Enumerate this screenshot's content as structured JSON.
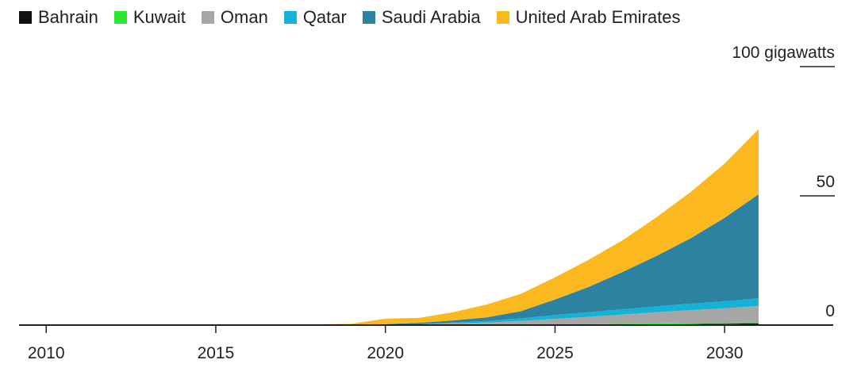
{
  "chart_data": {
    "type": "area",
    "stacked": true,
    "unit": "gigawatts",
    "x": [
      2010,
      2011,
      2012,
      2013,
      2014,
      2015,
      2016,
      2017,
      2018,
      2019,
      2020,
      2021,
      2022,
      2023,
      2024,
      2025,
      2026,
      2027,
      2028,
      2029,
      2030,
      2031
    ],
    "series": [
      {
        "name": "Bahrain",
        "color": "#111111",
        "values": [
          0,
          0,
          0,
          0,
          0,
          0,
          0,
          0,
          0,
          0,
          0,
          0,
          0,
          0,
          0,
          0,
          0.1,
          0.2,
          0.3,
          0.4,
          0.5,
          0.7
        ]
      },
      {
        "name": "Kuwait",
        "color": "#2ee62e",
        "values": [
          0,
          0,
          0,
          0,
          0,
          0,
          0,
          0,
          0,
          0,
          0,
          0,
          0,
          0,
          0.1,
          0.2,
          0.2,
          0.3,
          0.3,
          0.4,
          0.4,
          0.5
        ]
      },
      {
        "name": "Oman",
        "color": "#a6a6a6",
        "values": [
          0,
          0,
          0,
          0,
          0,
          0,
          0,
          0,
          0,
          0,
          0.1,
          0.3,
          0.7,
          1.0,
          1.5,
          2.2,
          2.9,
          3.6,
          4.4,
          5.0,
          5.6,
          6.2
        ]
      },
      {
        "name": "Qatar",
        "color": "#12b3d4",
        "values": [
          0,
          0,
          0,
          0,
          0,
          0,
          0,
          0,
          0,
          0,
          0,
          0,
          0.3,
          0.6,
          1.0,
          1.5,
          1.8,
          2.0,
          2.3,
          2.5,
          2.7,
          3.0
        ]
      },
      {
        "name": "Saudi Arabia",
        "color": "#2e82a1",
        "values": [
          0,
          0,
          0,
          0,
          0,
          0,
          0,
          0,
          0,
          0,
          0.3,
          0.6,
          0.8,
          1.4,
          2.8,
          6.0,
          9.8,
          14.5,
          19.5,
          25.3,
          32.3,
          40.2
        ]
      },
      {
        "name": "United Arab Emirates",
        "color": "#fbb81f",
        "values": [
          0,
          0,
          0,
          0,
          0.2,
          0.2,
          0.3,
          0.3,
          0.3,
          0.5,
          2.1,
          1.9,
          3.2,
          5.0,
          6.7,
          8.6,
          10.5,
          12.3,
          15.0,
          17.9,
          21.0,
          25.2
        ]
      }
    ],
    "xlim": [
      2009.2,
      2033.2
    ],
    "ylim": [
      0,
      100
    ],
    "xticks": [
      2010,
      2015,
      2020,
      2025,
      2030
    ],
    "xtick_labels": [
      "2010",
      "2015",
      "2020",
      "2025",
      "2030"
    ],
    "yticks": [
      0,
      50,
      100
    ],
    "ytick_labels": [
      "0",
      "50",
      "100 gigawatts"
    ],
    "legend_position": "top-left",
    "grid": false
  }
}
